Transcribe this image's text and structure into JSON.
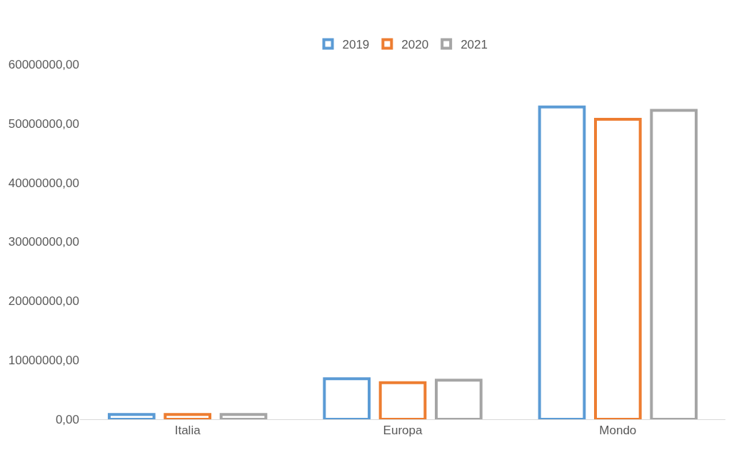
{
  "chart_data": {
    "type": "bar",
    "categories": [
      "Italia",
      "Europa",
      "Mondo"
    ],
    "series": [
      {
        "name": "2019",
        "color": "#5b9bd5",
        "values": [
          800000,
          6850000,
          52800000
        ]
      },
      {
        "name": "2020",
        "color": "#ed7d31",
        "values": [
          800000,
          6200000,
          50700000
        ]
      },
      {
        "name": "2021",
        "color": "#a5a5a5",
        "values": [
          800000,
          6600000,
          52200000
        ]
      }
    ],
    "ylim": [
      0,
      60000000
    ],
    "yticks": [
      {
        "value": 0,
        "label": "0,00"
      },
      {
        "value": 10000000,
        "label": "10000000,00"
      },
      {
        "value": 20000000,
        "label": "20000000,00"
      },
      {
        "value": 30000000,
        "label": "30000000,00"
      },
      {
        "value": 40000000,
        "label": "40000000,00"
      },
      {
        "value": 50000000,
        "label": "50000000,00"
      },
      {
        "value": 60000000,
        "label": "60000000,00"
      }
    ],
    "grid": false,
    "legend": "top"
  }
}
